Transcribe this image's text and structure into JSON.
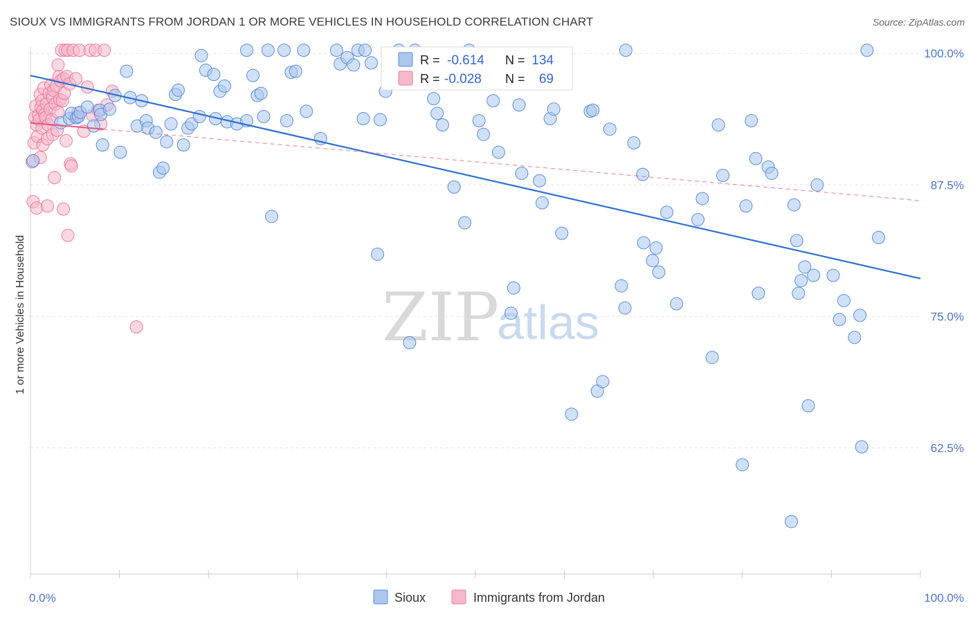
{
  "title": "SIOUX VS IMMIGRANTS FROM JORDAN 1 OR MORE VEHICLES IN HOUSEHOLD CORRELATION CHART",
  "source": "Source: ZipAtlas.com",
  "watermark": {
    "zip": "ZIP",
    "atlas": "atlas"
  },
  "legend": {
    "r_label": "R =",
    "n_label": "N =",
    "rows": [
      {
        "name": "Sioux",
        "r": "-0.614",
        "n": "134",
        "fill": "#aac7ee",
        "stroke": "#5b8ed8"
      },
      {
        "name": "Immigrants from Jordan",
        "r": "-0.028",
        "n": "69",
        "fill": "#f5b8cb",
        "stroke": "#e87ca0"
      }
    ]
  },
  "colors": {
    "sioux_fill": "#aac7ee",
    "sioux_stroke": "#5b8ed8",
    "sioux_line": "#2f6fcf",
    "jordan_fill": "#f5b8cb",
    "jordan_stroke": "#e87ca0",
    "jordan_line": "#e0577f",
    "grid": "#e3e3e3",
    "tick": "#4a74c9"
  },
  "chart_data": {
    "type": "scatter",
    "title": "SIOUX VS IMMIGRANTS FROM JORDAN 1 OR MORE VEHICLES IN HOUSEHOLD CORRELATION CHART",
    "xlabel": "",
    "ylabel": "1 or more Vehicles in Household",
    "xlim": [
      0,
      100
    ],
    "ylim": [
      50.5,
      101
    ],
    "x_tick_labels": [
      "0.0%",
      "100.0%"
    ],
    "y_ticks": [
      {
        "value": 100.0,
        "label": "100.0%"
      },
      {
        "value": 87.5,
        "label": "87.5%"
      },
      {
        "value": 75.0,
        "label": "75.0%"
      },
      {
        "value": 62.5,
        "label": "62.5%"
      }
    ],
    "grid": true,
    "legend_position": "bottom-center",
    "series": [
      {
        "name": "Sioux",
        "r": -0.614,
        "n": 134,
        "trend": {
          "x": [
            0,
            100
          ],
          "y": [
            97.9,
            78.6
          ],
          "style": "solid"
        },
        "points": [
          [
            0.3,
            89.8
          ],
          [
            3.4,
            93.4
          ],
          [
            4.4,
            93.8
          ],
          [
            4.6,
            94.3
          ],
          [
            5.2,
            93.9
          ],
          [
            5.4,
            94.0
          ],
          [
            5.6,
            94.4
          ],
          [
            6.4,
            94.9
          ],
          [
            7.1,
            93.1
          ],
          [
            7.8,
            94.6
          ],
          [
            7.9,
            94.2
          ],
          [
            8.1,
            91.3
          ],
          [
            8.9,
            94.7
          ],
          [
            9.5,
            96.0
          ],
          [
            10.1,
            90.6
          ],
          [
            10.8,
            98.3
          ],
          [
            11.2,
            95.8
          ],
          [
            12.0,
            93.1
          ],
          [
            12.5,
            95.5
          ],
          [
            13.0,
            93.6
          ],
          [
            13.2,
            92.9
          ],
          [
            14.1,
            92.5
          ],
          [
            14.5,
            88.7
          ],
          [
            14.9,
            89.1
          ],
          [
            15.3,
            91.6
          ],
          [
            15.8,
            93.3
          ],
          [
            16.3,
            96.1
          ],
          [
            16.6,
            96.5
          ],
          [
            17.2,
            91.3
          ],
          [
            17.7,
            92.9
          ],
          [
            18.1,
            93.3
          ],
          [
            19.0,
            94.0
          ],
          [
            19.2,
            99.8
          ],
          [
            19.7,
            98.4
          ],
          [
            20.6,
            98.0
          ],
          [
            20.8,
            93.8
          ],
          [
            21.3,
            96.4
          ],
          [
            21.8,
            96.9
          ],
          [
            22.1,
            93.5
          ],
          [
            23.2,
            93.3
          ],
          [
            24.3,
            93.6
          ],
          [
            24.3,
            100.3
          ],
          [
            25.0,
            97.9
          ],
          [
            25.5,
            96.0
          ],
          [
            25.9,
            96.2
          ],
          [
            26.2,
            94.0
          ],
          [
            26.7,
            100.3
          ],
          [
            27.1,
            84.5
          ],
          [
            28.5,
            100.3
          ],
          [
            28.8,
            93.6
          ],
          [
            29.3,
            98.2
          ],
          [
            29.8,
            98.3
          ],
          [
            30.7,
            100.3
          ],
          [
            31.0,
            94.5
          ],
          [
            32.6,
            91.9
          ],
          [
            34.4,
            100.3
          ],
          [
            34.8,
            99.0
          ],
          [
            35.6,
            99.6
          ],
          [
            36.3,
            98.9
          ],
          [
            36.8,
            100.3
          ],
          [
            37.4,
            93.8
          ],
          [
            37.6,
            100.3
          ],
          [
            38.3,
            99.1
          ],
          [
            39.0,
            80.9
          ],
          [
            39.3,
            93.7
          ],
          [
            39.9,
            96.4
          ],
          [
            41.4,
            100.3
          ],
          [
            42.6,
            72.5
          ],
          [
            43.2,
            100.3
          ],
          [
            45.3,
            95.7
          ],
          [
            45.7,
            94.3
          ],
          [
            46.3,
            93.2
          ],
          [
            47.6,
            87.3
          ],
          [
            48.8,
            83.9
          ],
          [
            49.3,
            100.3
          ],
          [
            50.4,
            93.6
          ],
          [
            50.9,
            92.3
          ],
          [
            52.0,
            95.5
          ],
          [
            52.6,
            90.6
          ],
          [
            54.0,
            75.3
          ],
          [
            54.3,
            77.7
          ],
          [
            54.9,
            95.1
          ],
          [
            55.2,
            88.6
          ],
          [
            57.2,
            87.9
          ],
          [
            57.5,
            85.8
          ],
          [
            58.4,
            93.8
          ],
          [
            58.8,
            94.7
          ],
          [
            59.7,
            82.9
          ],
          [
            60.8,
            65.7
          ],
          [
            62.9,
            94.5
          ],
          [
            63.2,
            94.6
          ],
          [
            63.7,
            67.9
          ],
          [
            64.3,
            68.8
          ],
          [
            65.1,
            92.8
          ],
          [
            66.4,
            77.9
          ],
          [
            66.8,
            75.8
          ],
          [
            66.9,
            100.3
          ],
          [
            67.8,
            91.5
          ],
          [
            68.8,
            88.5
          ],
          [
            68.9,
            82.0
          ],
          [
            69.9,
            80.3
          ],
          [
            70.3,
            81.5
          ],
          [
            70.6,
            79.2
          ],
          [
            71.5,
            84.9
          ],
          [
            72.6,
            76.2
          ],
          [
            75.0,
            84.2
          ],
          [
            75.5,
            86.2
          ],
          [
            76.6,
            71.1
          ],
          [
            77.3,
            93.2
          ],
          [
            77.8,
            88.4
          ],
          [
            80.0,
            60.9
          ],
          [
            80.4,
            85.5
          ],
          [
            81.0,
            93.6
          ],
          [
            81.5,
            90.0
          ],
          [
            81.8,
            77.2
          ],
          [
            82.9,
            89.2
          ],
          [
            83.3,
            88.6
          ],
          [
            85.5,
            55.5
          ],
          [
            85.8,
            85.6
          ],
          [
            86.1,
            82.2
          ],
          [
            87.0,
            79.7
          ],
          [
            86.6,
            78.4
          ],
          [
            86.3,
            77.2
          ],
          [
            87.4,
            66.5
          ],
          [
            88.0,
            78.9
          ],
          [
            88.4,
            87.5
          ],
          [
            90.2,
            78.9
          ],
          [
            90.9,
            74.7
          ],
          [
            91.4,
            76.5
          ],
          [
            92.6,
            73.0
          ],
          [
            93.2,
            75.1
          ],
          [
            93.4,
            62.6
          ],
          [
            94.0,
            100.3
          ],
          [
            95.3,
            82.5
          ]
        ]
      },
      {
        "name": "Immigrants from Jordan",
        "r": -0.028,
        "n": 69,
        "trend": {
          "x": [
            0,
            100
          ],
          "y": [
            93.4,
            86.0
          ],
          "style": "dashed",
          "solid_until_x": 8.2
        },
        "points": [
          [
            0.2,
            89.7
          ],
          [
            0.3,
            85.9
          ],
          [
            0.4,
            91.5
          ],
          [
            0.5,
            93.9
          ],
          [
            0.6,
            95.0
          ],
          [
            0.7,
            93.2
          ],
          [
            0.7,
            85.3
          ],
          [
            0.8,
            92.1
          ],
          [
            0.9,
            94.1
          ],
          [
            1.0,
            93.7
          ],
          [
            1.1,
            96.1
          ],
          [
            1.1,
            90.1
          ],
          [
            1.2,
            94.9
          ],
          [
            1.3,
            95.5
          ],
          [
            1.3,
            92.9
          ],
          [
            1.4,
            94.6
          ],
          [
            1.4,
            91.3
          ],
          [
            1.5,
            96.7
          ],
          [
            1.6,
            94.2
          ],
          [
            1.7,
            93.9
          ],
          [
            1.8,
            95.2
          ],
          [
            1.9,
            91.9
          ],
          [
            1.9,
            85.5
          ],
          [
            2.0,
            93.2
          ],
          [
            2.1,
            96.2
          ],
          [
            2.2,
            94.7
          ],
          [
            2.3,
            97.0
          ],
          [
            2.4,
            93.7
          ],
          [
            2.5,
            92.3
          ],
          [
            2.5,
            95.8
          ],
          [
            2.6,
            96.5
          ],
          [
            2.7,
            88.2
          ],
          [
            2.8,
            95.2
          ],
          [
            2.9,
            96.9
          ],
          [
            3.0,
            92.7
          ],
          [
            3.1,
            94.4
          ],
          [
            3.1,
            98.9
          ],
          [
            3.2,
            97.8
          ],
          [
            3.3,
            95.6
          ],
          [
            3.4,
            97.4
          ],
          [
            3.5,
            100.3
          ],
          [
            3.6,
            95.5
          ],
          [
            3.7,
            97.6
          ],
          [
            3.8,
            96.2
          ],
          [
            3.9,
            100.3
          ],
          [
            3.7,
            85.2
          ],
          [
            4.0,
            91.7
          ],
          [
            4.1,
            97.8
          ],
          [
            4.2,
            100.3
          ],
          [
            4.2,
            82.7
          ],
          [
            4.4,
            97.1
          ],
          [
            4.5,
            89.5
          ],
          [
            4.6,
            89.3
          ],
          [
            4.8,
            100.3
          ],
          [
            5.0,
            93.9
          ],
          [
            5.1,
            97.6
          ],
          [
            5.3,
            94.3
          ],
          [
            5.5,
            100.3
          ],
          [
            6.0,
            92.6
          ],
          [
            6.4,
            96.8
          ],
          [
            6.7,
            100.3
          ],
          [
            7.0,
            94.1
          ],
          [
            7.3,
            100.3
          ],
          [
            7.6,
            94.6
          ],
          [
            7.9,
            93.3
          ],
          [
            8.3,
            100.3
          ],
          [
            8.6,
            95.1
          ],
          [
            9.2,
            96.4
          ],
          [
            11.9,
            74.0
          ]
        ]
      }
    ]
  }
}
